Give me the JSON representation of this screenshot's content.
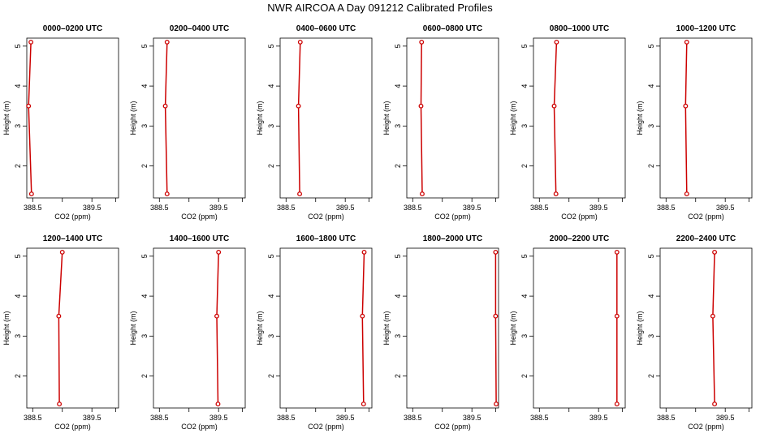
{
  "title": "NWR AIRCOA A  Day 091212  Calibrated Profiles",
  "chart_data": [
    {
      "type": "line",
      "title": "0000–0200 UTC",
      "xlabel": "CO2 (ppm)",
      "ylabel": "Height (m)",
      "xlim": [
        388.4,
        389.95
      ],
      "ylim": [
        1.2,
        5.2
      ],
      "xticks": [
        "388.5",
        "",
        "389.5",
        ""
      ],
      "xtick_values": [
        388.5,
        389.0,
        389.5,
        389.9
      ],
      "yticks": [
        2,
        3,
        4,
        5
      ],
      "points": [
        {
          "x": 388.48,
          "y": 1.3
        },
        {
          "x": 388.43,
          "y": 3.5
        },
        {
          "x": 388.47,
          "y": 5.1
        }
      ]
    },
    {
      "type": "line",
      "title": "0200–0400 UTC",
      "xlabel": "CO2 (ppm)",
      "ylabel": "Height (m)",
      "xlim": [
        388.4,
        389.95
      ],
      "ylim": [
        1.2,
        5.2
      ],
      "xticks": [
        "388.5",
        "",
        "389.5",
        ""
      ],
      "xtick_values": [
        388.5,
        389.0,
        389.5,
        389.9
      ],
      "yticks": [
        2,
        3,
        4,
        5
      ],
      "points": [
        {
          "x": 388.63,
          "y": 1.3
        },
        {
          "x": 388.6,
          "y": 3.5
        },
        {
          "x": 388.63,
          "y": 5.1
        }
      ]
    },
    {
      "type": "line",
      "title": "0400–0600 UTC",
      "xlabel": "CO2 (ppm)",
      "ylabel": "Height (m)",
      "xlim": [
        388.4,
        389.95
      ],
      "ylim": [
        1.2,
        5.2
      ],
      "xticks": [
        "388.5",
        "",
        "389.5",
        ""
      ],
      "xtick_values": [
        388.5,
        389.0,
        389.5,
        389.9
      ],
      "yticks": [
        2,
        3,
        4,
        5
      ],
      "points": [
        {
          "x": 388.73,
          "y": 1.3
        },
        {
          "x": 388.71,
          "y": 3.5
        },
        {
          "x": 388.74,
          "y": 5.1
        }
      ]
    },
    {
      "type": "line",
      "title": "0600–0800 UTC",
      "xlabel": "CO2 (ppm)",
      "ylabel": "Height (m)",
      "xlim": [
        388.4,
        389.95
      ],
      "ylim": [
        1.2,
        5.2
      ],
      "xticks": [
        "388.5",
        "",
        "389.5",
        ""
      ],
      "xtick_values": [
        388.5,
        389.0,
        389.5,
        389.9
      ],
      "yticks": [
        2,
        3,
        4,
        5
      ],
      "points": [
        {
          "x": 388.66,
          "y": 1.3
        },
        {
          "x": 388.64,
          "y": 3.5
        },
        {
          "x": 388.65,
          "y": 5.1
        }
      ]
    },
    {
      "type": "line",
      "title": "0800–1000 UTC",
      "xlabel": "CO2 (ppm)",
      "ylabel": "Height (m)",
      "xlim": [
        388.4,
        389.95
      ],
      "ylim": [
        1.2,
        5.2
      ],
      "xticks": [
        "388.5",
        "",
        "389.5",
        ""
      ],
      "xtick_values": [
        388.5,
        389.0,
        389.5,
        389.9
      ],
      "yticks": [
        2,
        3,
        4,
        5
      ],
      "points": [
        {
          "x": 388.78,
          "y": 1.3
        },
        {
          "x": 388.75,
          "y": 3.5
        },
        {
          "x": 388.79,
          "y": 5.1
        }
      ]
    },
    {
      "type": "line",
      "title": "1000–1200 UTC",
      "xlabel": "CO2 (ppm)",
      "ylabel": "Height (m)",
      "xlim": [
        388.4,
        389.95
      ],
      "ylim": [
        1.2,
        5.2
      ],
      "xticks": [
        "388.5",
        "",
        "389.5",
        ""
      ],
      "xtick_values": [
        388.5,
        389.0,
        389.5,
        389.9
      ],
      "yticks": [
        2,
        3,
        4,
        5
      ],
      "points": [
        {
          "x": 388.85,
          "y": 1.3
        },
        {
          "x": 388.83,
          "y": 3.5
        },
        {
          "x": 388.85,
          "y": 5.1
        }
      ]
    },
    {
      "type": "line",
      "title": "1200–1400 UTC",
      "xlabel": "CO2 (ppm)",
      "ylabel": "Height (m)",
      "xlim": [
        388.4,
        389.95
      ],
      "ylim": [
        1.2,
        5.2
      ],
      "xticks": [
        "388.5",
        "",
        "389.5",
        ""
      ],
      "xtick_values": [
        388.5,
        389.0,
        389.5,
        389.9
      ],
      "yticks": [
        2,
        3,
        4,
        5
      ],
      "points": [
        {
          "x": 388.95,
          "y": 1.3
        },
        {
          "x": 388.94,
          "y": 3.5
        },
        {
          "x": 389.0,
          "y": 5.1
        }
      ]
    },
    {
      "type": "line",
      "title": "1400–1600 UTC",
      "xlabel": "CO2 (ppm)",
      "ylabel": "Height (m)",
      "xlim": [
        388.4,
        389.95
      ],
      "ylim": [
        1.2,
        5.2
      ],
      "xticks": [
        "388.5",
        "",
        "389.5",
        ""
      ],
      "xtick_values": [
        388.5,
        389.0,
        389.5,
        389.9
      ],
      "yticks": [
        2,
        3,
        4,
        5
      ],
      "points": [
        {
          "x": 389.49,
          "y": 1.3
        },
        {
          "x": 389.47,
          "y": 3.5
        },
        {
          "x": 389.5,
          "y": 5.1
        }
      ]
    },
    {
      "type": "line",
      "title": "1600–1800 UTC",
      "xlabel": "CO2 (ppm)",
      "ylabel": "Height (m)",
      "xlim": [
        388.4,
        389.95
      ],
      "ylim": [
        1.2,
        5.2
      ],
      "xticks": [
        "388.5",
        "",
        "389.5",
        ""
      ],
      "xtick_values": [
        388.5,
        389.0,
        389.5,
        389.9
      ],
      "yticks": [
        2,
        3,
        4,
        5
      ],
      "points": [
        {
          "x": 389.81,
          "y": 1.3
        },
        {
          "x": 389.79,
          "y": 3.5
        },
        {
          "x": 389.82,
          "y": 5.1
        }
      ]
    },
    {
      "type": "line",
      "title": "1800–2000 UTC",
      "xlabel": "CO2 (ppm)",
      "ylabel": "Height (m)",
      "xlim": [
        388.4,
        389.95
      ],
      "ylim": [
        1.2,
        5.2
      ],
      "xticks": [
        "388.5",
        "",
        "389.5",
        ""
      ],
      "xtick_values": [
        388.5,
        389.0,
        389.5,
        389.9
      ],
      "yticks": [
        2,
        3,
        4,
        5
      ],
      "points": [
        {
          "x": 389.91,
          "y": 1.3
        },
        {
          "x": 389.9,
          "y": 3.5
        },
        {
          "x": 389.9,
          "y": 5.1
        }
      ]
    },
    {
      "type": "line",
      "title": "2000–2200 UTC",
      "xlabel": "",
      "ylabel": "Height (m)",
      "xlim": [
        388.4,
        389.95
      ],
      "ylim": [
        1.2,
        5.2
      ],
      "xticks": [
        "388.5",
        "",
        "389.5",
        ""
      ],
      "xtick_values": [
        388.5,
        389.0,
        389.5,
        389.9
      ],
      "yticks": [
        2,
        3,
        4,
        5
      ],
      "points": [
        {
          "x": 389.81,
          "y": 1.3
        },
        {
          "x": 389.81,
          "y": 3.5
        },
        {
          "x": 389.81,
          "y": 5.1
        }
      ]
    },
    {
      "type": "line",
      "title": "2200–2400 UTC",
      "xlabel": "CO2 (ppm)",
      "ylabel": "Height (m)",
      "xlim": [
        388.4,
        389.95
      ],
      "ylim": [
        1.2,
        5.2
      ],
      "xticks": [
        "388.5",
        "",
        "389.5",
        ""
      ],
      "xtick_values": [
        388.5,
        389.0,
        389.5,
        389.9
      ],
      "yticks": [
        2,
        3,
        4,
        5
      ],
      "points": [
        {
          "x": 389.32,
          "y": 1.3
        },
        {
          "x": 389.29,
          "y": 3.5
        },
        {
          "x": 389.32,
          "y": 5.1
        }
      ]
    }
  ],
  "line_color": "#cc0000",
  "marker_color": "#cc0000"
}
